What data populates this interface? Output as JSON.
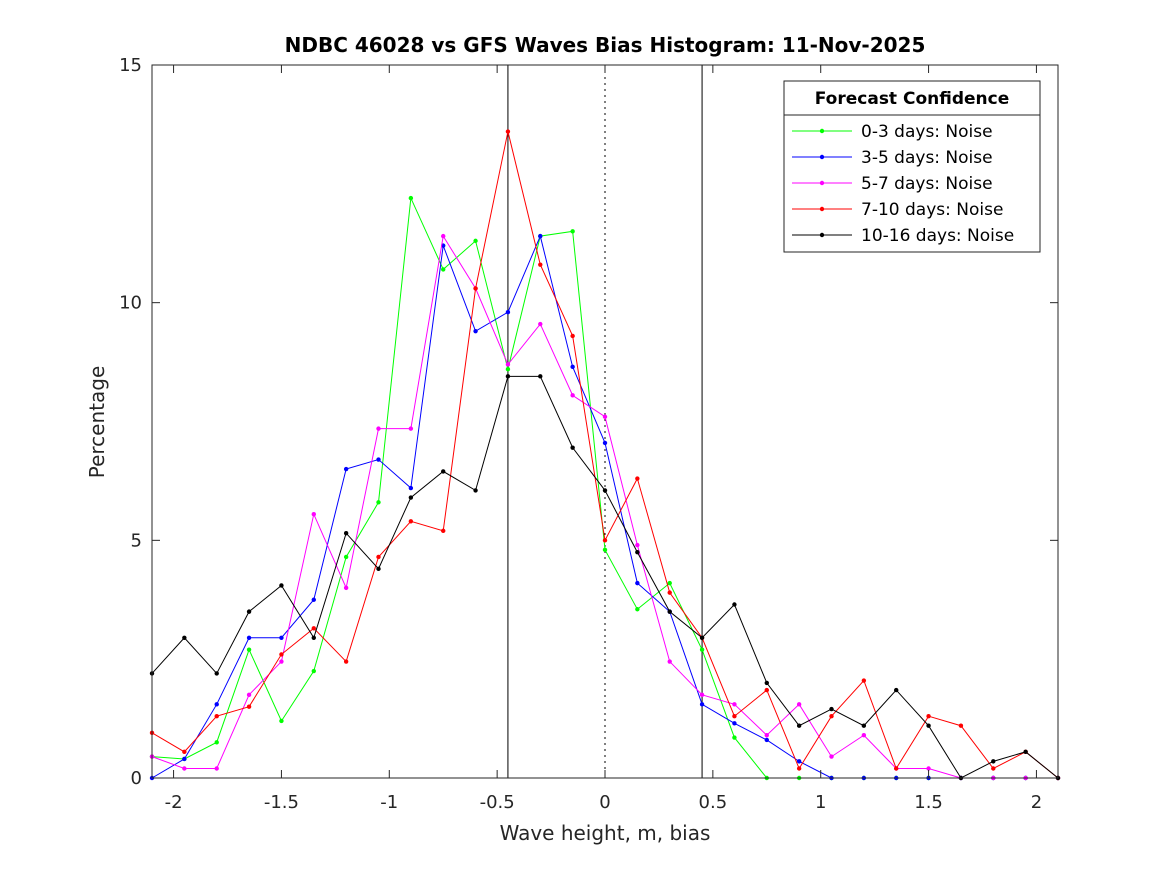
{
  "chart_data": {
    "type": "line",
    "title": "NDBC 46028 vs GFS Waves Bias Histogram: 11-Nov-2025",
    "xlabel": "Wave height, m, bias",
    "ylabel": "Percentage",
    "xlim": [
      -2.1,
      2.1
    ],
    "ylim": [
      0,
      15
    ],
    "xticks": [
      -2,
      -1.5,
      -1,
      -0.5,
      0,
      0.5,
      1,
      1.5,
      2
    ],
    "xtick_labels": [
      "-2",
      "-1.5",
      "-1",
      "-0.5",
      "0",
      "0.5",
      "1",
      "1.5",
      "2"
    ],
    "yticks": [
      0,
      5,
      10,
      15
    ],
    "ytick_labels": [
      "0",
      "5",
      "10",
      "15"
    ],
    "vertical_lines": [
      {
        "x": -0.45,
        "style": "solid"
      },
      {
        "x": 0,
        "style": "dotted"
      },
      {
        "x": 0.45,
        "style": "solid"
      }
    ],
    "legend_title": "Forecast Confidence",
    "legend_position": "top-right",
    "x": [
      -2.1,
      -1.95,
      -1.8,
      -1.65,
      -1.5,
      -1.35,
      -1.2,
      -1.05,
      -0.9,
      -0.75,
      -0.6,
      -0.45,
      -0.3,
      -0.15,
      0,
      0.15,
      0.3,
      0.45,
      0.6,
      0.75,
      0.9,
      1.05,
      1.2,
      1.35,
      1.5,
      1.65,
      1.8,
      1.95,
      2.1
    ],
    "series": [
      {
        "name": "0-3 days: Noise",
        "color": "#00ff00",
        "values": [
          0.45,
          0.4,
          0.75,
          2.7,
          1.2,
          2.25,
          4.65,
          5.8,
          12.2,
          10.7,
          11.3,
          8.6,
          11.4,
          11.5,
          4.8,
          3.55,
          4.1,
          2.7,
          0.85,
          0,
          0,
          0,
          0,
          0,
          0,
          0,
          0,
          0,
          0
        ]
      },
      {
        "name": "3-5 days: Noise",
        "color": "#0000ff",
        "values": [
          0,
          0.4,
          1.55,
          2.95,
          2.95,
          3.75,
          6.5,
          6.7,
          6.1,
          11.2,
          9.4,
          9.8,
          11.4,
          8.65,
          7.05,
          4.1,
          3.5,
          1.55,
          1.15,
          0.8,
          0.35,
          0,
          0,
          0,
          0,
          0,
          0,
          0,
          0
        ]
      },
      {
        "name": "5-7 days: Noise",
        "color": "#ff00ff",
        "values": [
          0.45,
          0.2,
          0.2,
          1.75,
          2.45,
          5.55,
          4.0,
          7.35,
          7.35,
          11.4,
          10.3,
          8.7,
          9.55,
          8.05,
          7.6,
          4.9,
          2.45,
          1.75,
          1.55,
          0.9,
          1.55,
          0.45,
          0.9,
          0.2,
          0.2,
          0,
          0,
          0,
          0
        ]
      },
      {
        "name": "7-10 days: Noise",
        "color": "#ff0000",
        "values": [
          0.95,
          0.55,
          1.3,
          1.5,
          2.6,
          3.15,
          2.45,
          4.65,
          5.4,
          5.2,
          10.3,
          13.6,
          10.8,
          9.3,
          5.0,
          6.3,
          3.9,
          2.95,
          1.3,
          1.85,
          0.2,
          1.3,
          2.05,
          0.2,
          1.3,
          1.1,
          0.2,
          0.55,
          0
        ]
      },
      {
        "name": "10-16 days: Noise",
        "color": "#000000",
        "values": [
          2.2,
          2.95,
          2.2,
          3.5,
          4.05,
          2.95,
          5.15,
          4.4,
          5.9,
          6.45,
          6.05,
          8.45,
          8.45,
          6.95,
          6.05,
          4.75,
          3.5,
          2.95,
          3.65,
          2.0,
          1.1,
          1.45,
          1.1,
          1.85,
          1.1,
          0,
          0.35,
          0.55,
          0
        ]
      }
    ]
  }
}
